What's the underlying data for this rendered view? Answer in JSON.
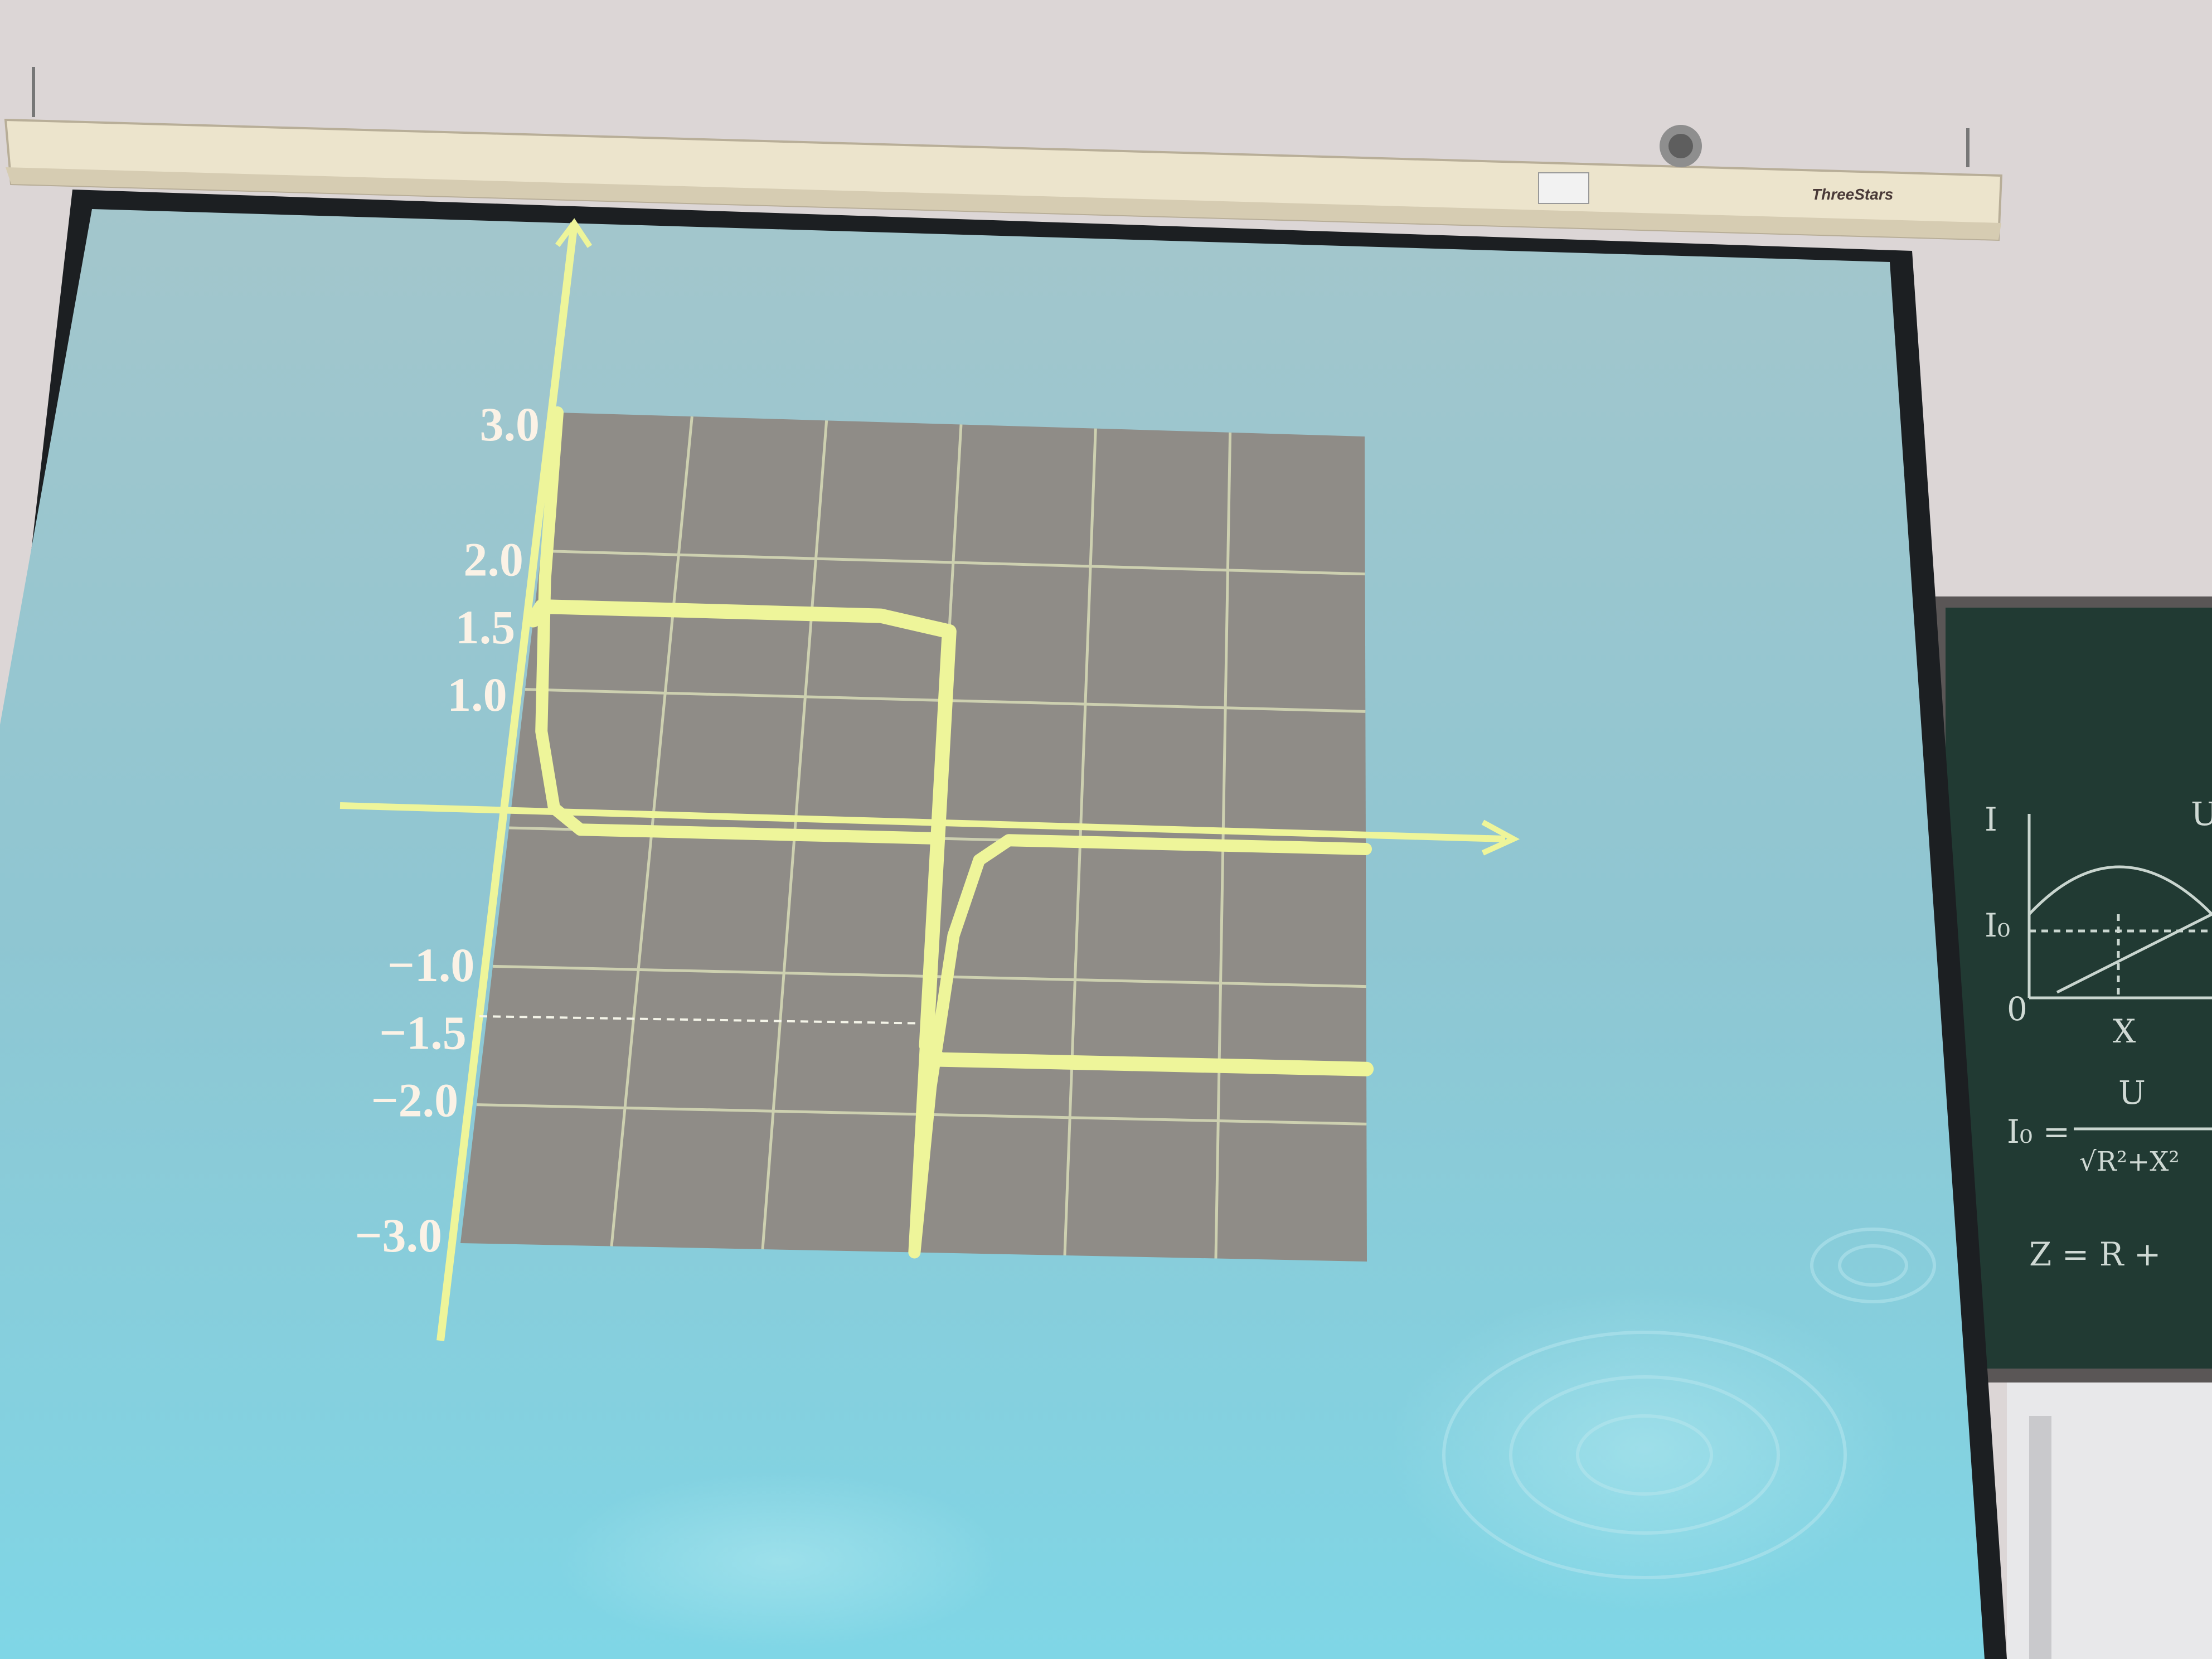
{
  "screen_brand": "ThreeStars",
  "colors": {
    "wall": "#d9d3d3",
    "screen": "#a9cfd6",
    "oscilloscope": "#8d8b86",
    "trace": "#eef59a",
    "blackboard": "#233d36"
  },
  "chart_data": {
    "type": "line",
    "title": "",
    "xlabel": "",
    "ylabel": "",
    "y_tick_labels": [
      "3.0",
      "2.0",
      "1.5",
      "1.0",
      "-1.0",
      "-1.5",
      "-2.0",
      "-3.0"
    ],
    "ylim": [
      -3.0,
      3.0
    ],
    "grid": true,
    "series": [
      {
        "x": [
          0,
          0.1,
          0.3,
          0.5,
          1,
          2,
          3,
          4,
          5,
          6,
          6.01,
          6.2,
          6.5,
          7,
          8,
          9,
          10,
          11,
          12
        ],
        "values": [
          1.5,
          1.6,
          1.6,
          1.6,
          1.6,
          1.6,
          1.6,
          1.6,
          1.6,
          1.5,
          -1.5,
          -1.6,
          -1.6,
          -1.6,
          -1.6,
          -1.6,
          -1.6,
          -1.6,
          -1.6
        ]
      },
      {
        "x": [
          0,
          0.1,
          0.3,
          0.6,
          1,
          2,
          3,
          4,
          5,
          6,
          6.01,
          6.1,
          6.3,
          6.6,
          7,
          8,
          9,
          10,
          11,
          12
        ],
        "values": [
          3.0,
          1.8,
          0.7,
          0.15,
          0.0,
          0.0,
          0.0,
          0.0,
          0.0,
          0.0,
          -3.0,
          -1.8,
          -0.7,
          -0.15,
          0.0,
          0.0,
          0.0,
          0.0,
          0.0,
          0.0
        ]
      }
    ]
  },
  "blackboard": {
    "axis_label_y": "I",
    "axis_label_u": "U",
    "axis_origin": "0",
    "axis_label_i0": "I₀",
    "axis_label_x": "X",
    "formula_lhs": "I₀ =",
    "formula_num": "U",
    "formula_den": "√R²+X²",
    "formula_line2": "Z = R +"
  }
}
